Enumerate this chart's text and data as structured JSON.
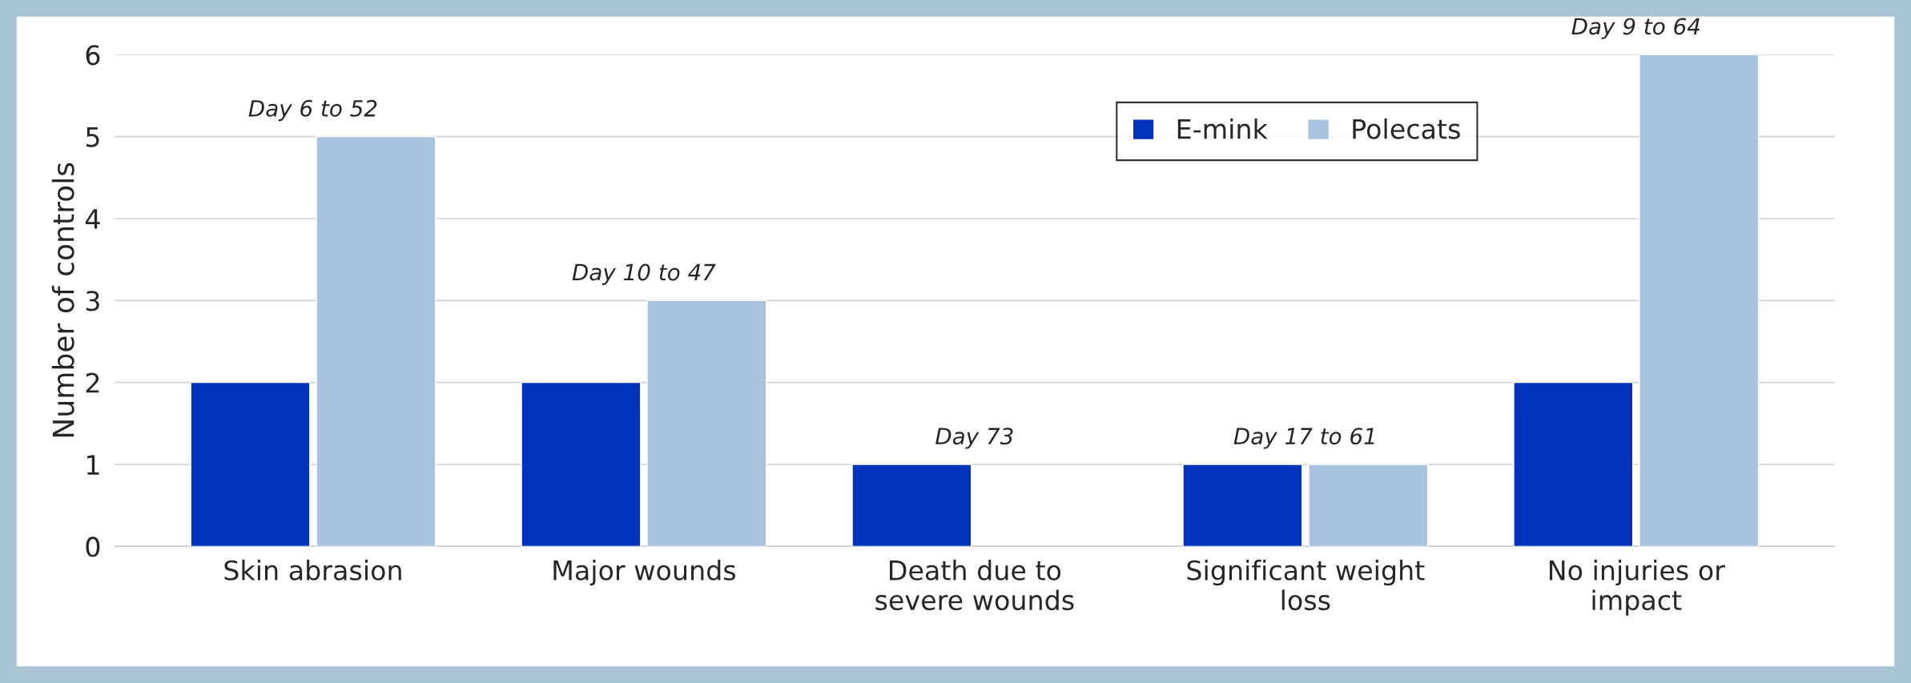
{
  "chart_data": {
    "type": "bar",
    "ylabel": "Number of controls",
    "categories": [
      "Skin abrasion",
      "Major wounds",
      "Death due to\nsevere wounds",
      "Significant weight\nloss",
      "No injuries or\nimpact"
    ],
    "series": [
      {
        "name": "E-mink",
        "color": "#0033bb",
        "values": [
          2,
          2,
          1,
          1,
          2
        ]
      },
      {
        "name": "Polecats",
        "color": "#a9c2de",
        "values": [
          5,
          3,
          null,
          1,
          6
        ]
      }
    ],
    "ylim": [
      0,
      6
    ],
    "yticks": [
      0,
      1,
      2,
      3,
      4,
      5,
      6
    ],
    "grid": "y",
    "legend": "top right",
    "annotations": [
      {
        "text": "Day 6 to 52",
        "x": "Skin abrasion",
        "y": 5
      },
      {
        "text": "Day 10 to 47",
        "x": "Major wounds",
        "y": 3
      },
      {
        "text": "Day 73",
        "x": "Death due to\nsevere wounds",
        "y": 1
      },
      {
        "text": "Day 17 to 61",
        "x": "Significant weight\nloss",
        "y": 1
      },
      {
        "text": "Day 9 to 64",
        "x": "No injuries or\nimpact",
        "y": 6
      }
    ]
  }
}
